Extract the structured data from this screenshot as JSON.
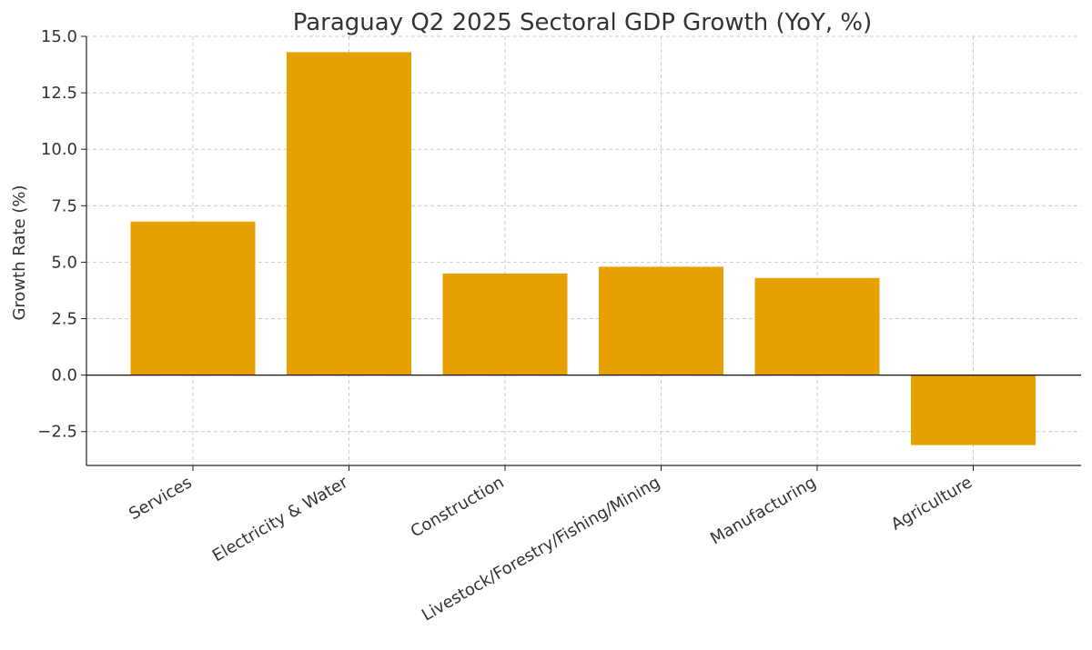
{
  "chart_data": {
    "type": "bar",
    "title": "Paraguay Q2 2025 Sectoral GDP Growth (YoY, %)",
    "xlabel": "",
    "ylabel": "Growth Rate (%)",
    "categories": [
      "Services",
      "Electricity & Water",
      "Construction",
      "Livestock/Forestry/Fishing/Mining",
      "Manufacturing",
      "Agriculture"
    ],
    "values": [
      6.8,
      14.3,
      4.5,
      4.8,
      4.3,
      -3.1
    ],
    "ylim": [
      -4.0,
      15.0
    ],
    "yticks": [
      -2.5,
      0.0,
      2.5,
      5.0,
      7.5,
      10.0,
      12.5,
      15.0
    ],
    "ytick_labels": [
      "−2.5",
      "0.0",
      "2.5",
      "5.0",
      "7.5",
      "10.0",
      "12.5",
      "15.0"
    ],
    "grid": true,
    "zero_line": true,
    "bar_color": "#e6a100"
  }
}
